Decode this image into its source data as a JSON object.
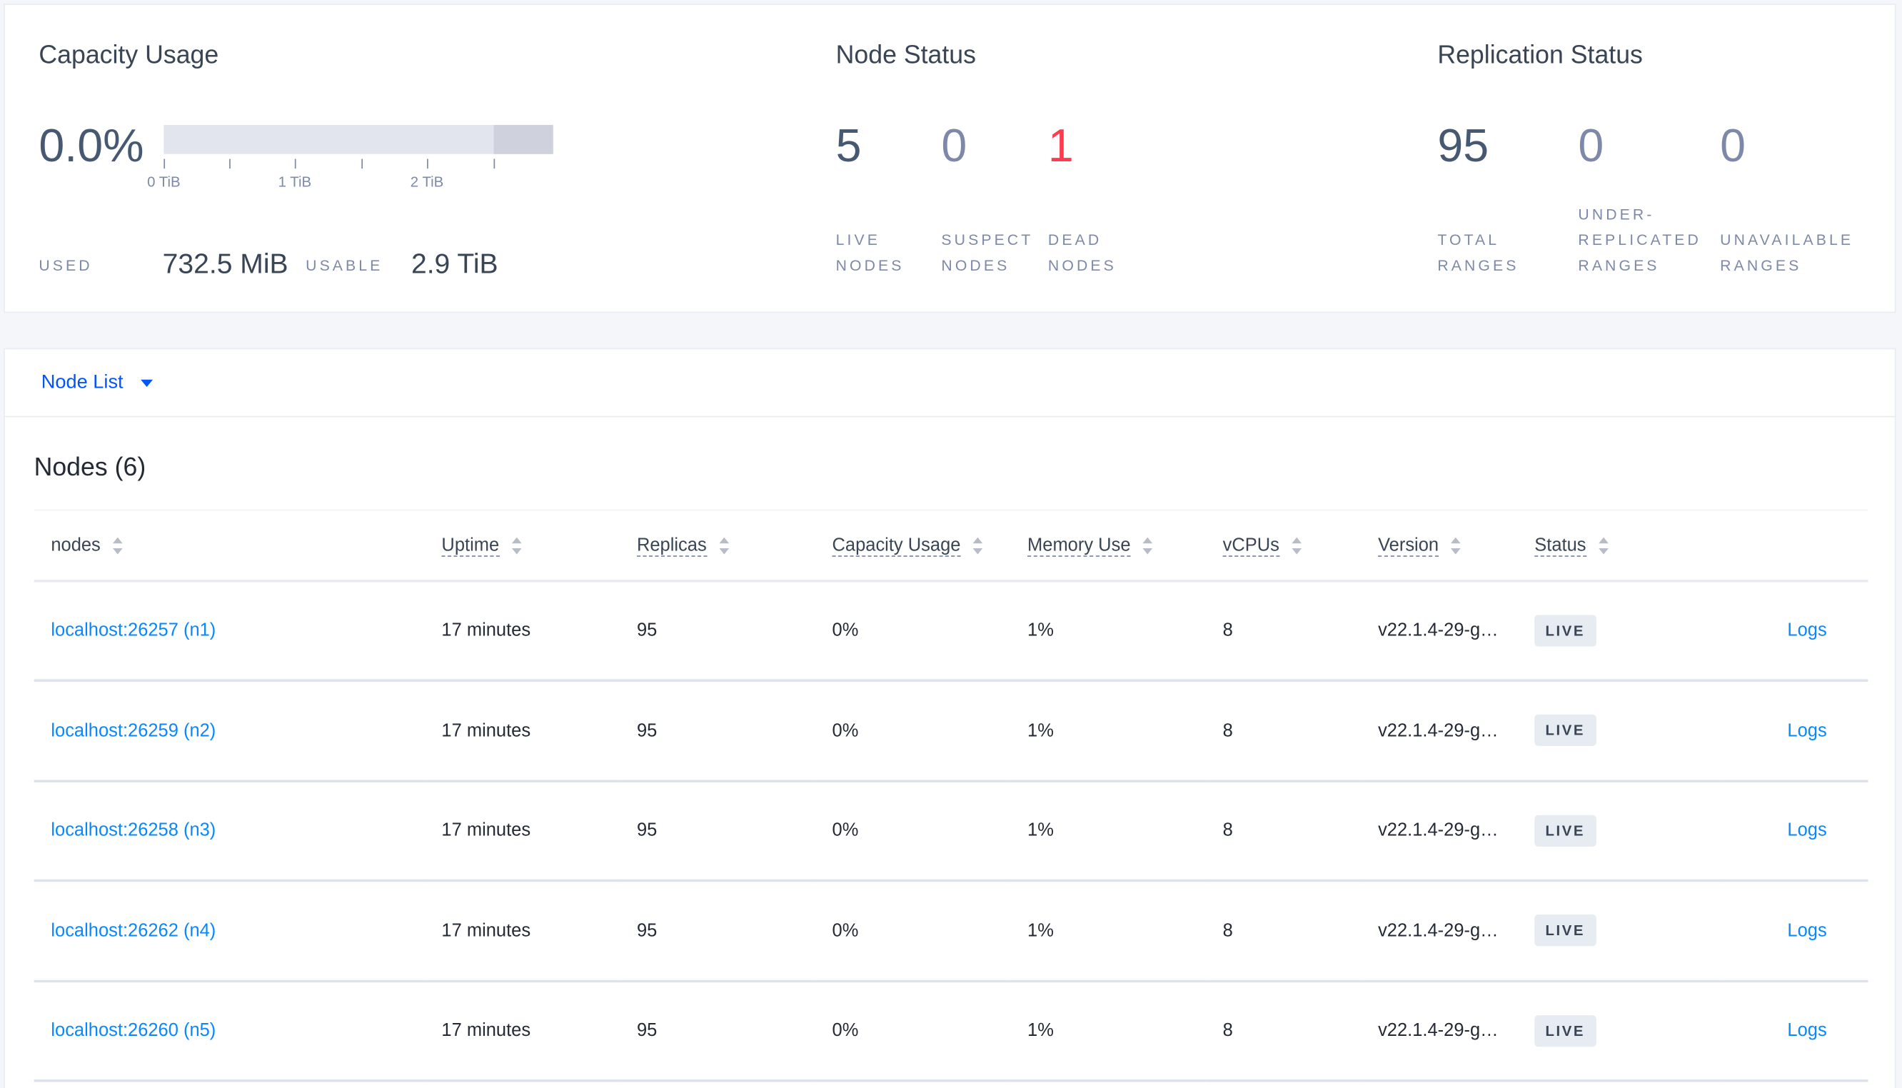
{
  "capacity": {
    "title": "Capacity Usage",
    "percent": "0.0%",
    "ticks": [
      "0 TiB",
      "1 TiB",
      "2 TiB"
    ],
    "used_label": "USED",
    "used_value": "732.5 MiB",
    "usable_label": "USABLE",
    "usable_value": "2.9 TiB",
    "usage_fraction": 0.0
  },
  "node_status": {
    "title": "Node Status",
    "live": "5",
    "live_label1": "LIVE",
    "live_label2": "NODES",
    "suspect": "0",
    "suspect_label1": "SUSPECT",
    "suspect_label2": "NODES",
    "dead": "1",
    "dead_label1": "DEAD",
    "dead_label2": "NODES",
    "dead_color": "#ff3b4e"
  },
  "replication": {
    "title": "Replication Status",
    "total": "95",
    "total_label1": "TOTAL",
    "total_label2": "RANGES",
    "under": "0",
    "under_label1": "UNDER-",
    "under_label2": "REPLICATED",
    "under_label3": "RANGES",
    "unavail": "0",
    "unavail_label1": "UNAVAILABLE",
    "unavail_label2": "RANGES"
  },
  "node_list": {
    "dropdown": "Node List",
    "title": "Nodes (6)",
    "columns": [
      "nodes",
      "Uptime",
      "Replicas",
      "Capacity Usage",
      "Memory Use",
      "vCPUs",
      "Version",
      "Status"
    ],
    "rows": [
      {
        "node": "localhost:26257 (n1)",
        "uptime": "17 minutes",
        "replicas": "95",
        "capacity": "0%",
        "memory": "1%",
        "vcpus": "8",
        "version": "v22.1.4-29-g…",
        "status": "LIVE",
        "logs": "Logs"
      },
      {
        "node": "localhost:26259 (n2)",
        "uptime": "17 minutes",
        "replicas": "95",
        "capacity": "0%",
        "memory": "1%",
        "vcpus": "8",
        "version": "v22.1.4-29-g…",
        "status": "LIVE",
        "logs": "Logs"
      },
      {
        "node": "localhost:26258 (n3)",
        "uptime": "17 minutes",
        "replicas": "95",
        "capacity": "0%",
        "memory": "1%",
        "vcpus": "8",
        "version": "v22.1.4-29-g…",
        "status": "LIVE",
        "logs": "Logs"
      },
      {
        "node": "localhost:26262 (n4)",
        "uptime": "17 minutes",
        "replicas": "95",
        "capacity": "0%",
        "memory": "1%",
        "vcpus": "8",
        "version": "v22.1.4-29-g…",
        "status": "LIVE",
        "logs": "Logs"
      },
      {
        "node": "localhost:26260 (n5)",
        "uptime": "17 minutes",
        "replicas": "95",
        "capacity": "0%",
        "memory": "1%",
        "vcpus": "8",
        "version": "v22.1.4-29-g…",
        "status": "LIVE",
        "logs": "Logs"
      }
    ]
  }
}
